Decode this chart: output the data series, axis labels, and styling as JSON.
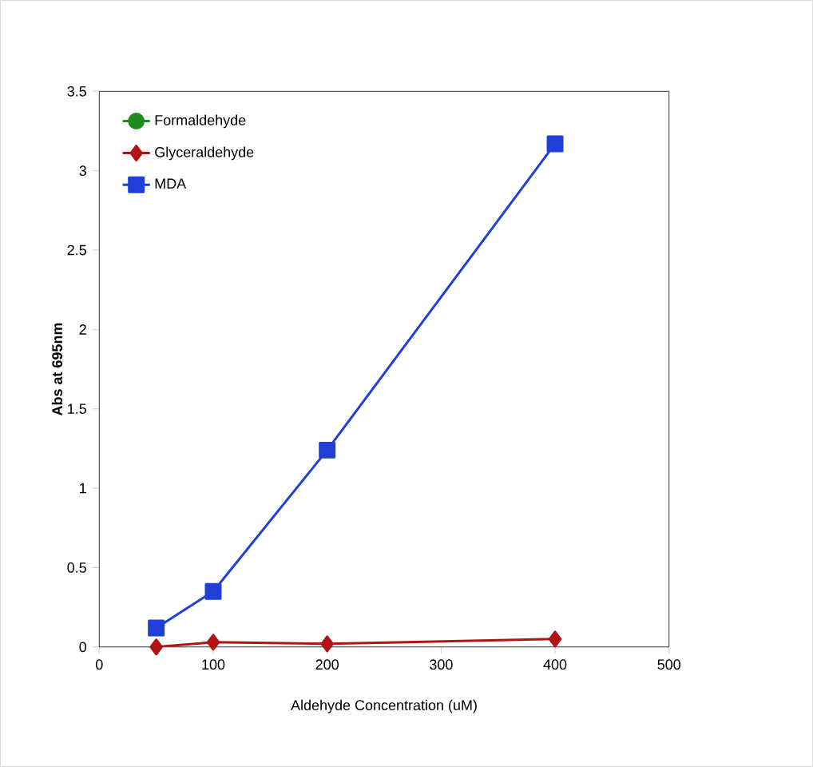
{
  "chart_data": {
    "type": "line",
    "xlabel": "Aldehyde Concentration (uM)",
    "ylabel": "Abs at 695nm",
    "x": [
      50,
      100,
      200,
      400
    ],
    "series": [
      {
        "name": "Formaldehyde",
        "color": "#1e8c1e",
        "marker": "circle",
        "values": [
          null,
          null,
          null,
          null
        ]
      },
      {
        "name": "Glyceraldehyde",
        "color": "#b01414",
        "marker": "diamond",
        "values": [
          0.0,
          0.03,
          0.02,
          0.05
        ]
      },
      {
        "name": "MDA",
        "color": "#1f3fd8",
        "marker": "square",
        "values": [
          0.12,
          0.35,
          1.24,
          3.17
        ]
      }
    ],
    "xlim": [
      0,
      500
    ],
    "ylim": [
      0,
      3.5
    ],
    "xticks": [
      0,
      100,
      200,
      300,
      400,
      500
    ],
    "yticks": [
      0,
      0.5,
      1,
      1.5,
      2,
      2.5,
      3,
      3.5
    ],
    "grid": false,
    "legend": "top left",
    "line_style": "solid"
  }
}
